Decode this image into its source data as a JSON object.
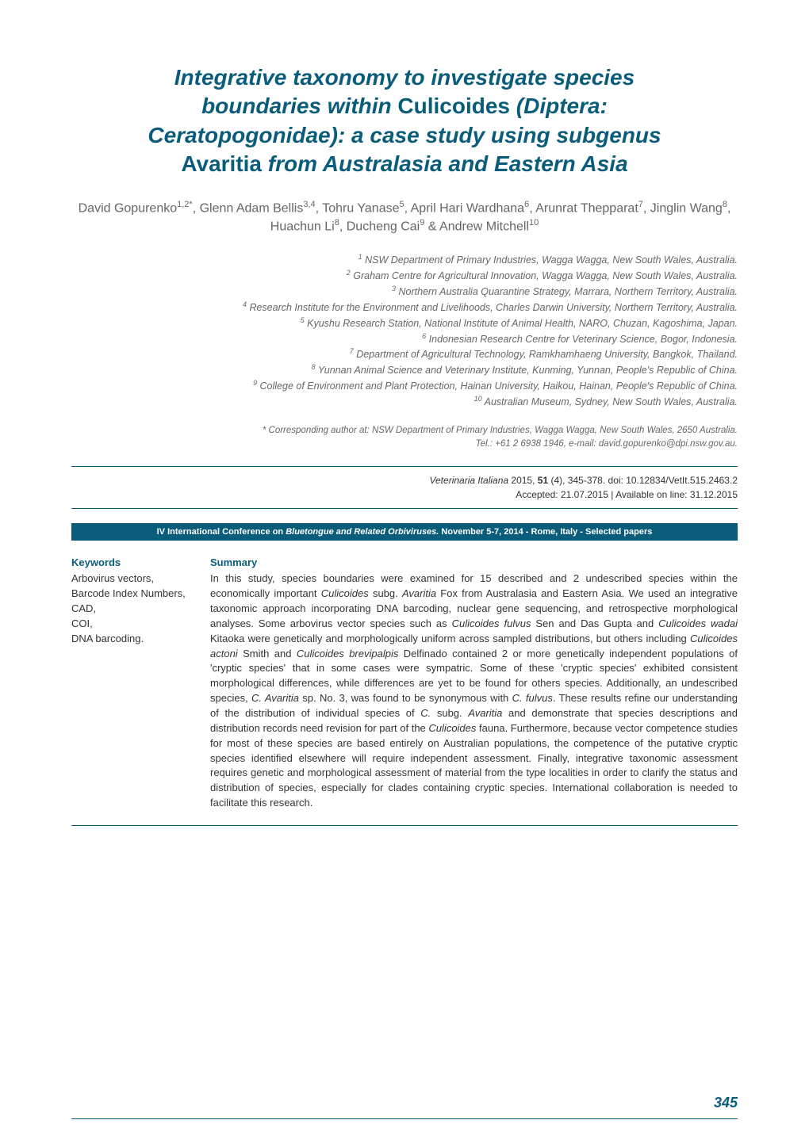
{
  "title": {
    "line1_italic": "Integrative taxonomy to investigate species",
    "line2_italic": "boundaries within",
    "line2_roman": " Culicoides ",
    "line2_italic_after": "(Diptera:",
    "line3_italic": "Ceratopogonidae): a case study using subgenus",
    "line4_roman": "Avaritia ",
    "line4_italic": "from Australasia and Eastern Asia"
  },
  "authors": {
    "text": "David Gopurenko1,2*, Glenn Adam Bellis3,4, Tohru Yanase5, April Hari Wardhana6, Arunrat Thepparat7, Jinglin Wang8, Huachun Li8, Ducheng Cai9 & Andrew Mitchell10",
    "parts": [
      {
        "name": "David Gopurenko",
        "sup": "1,2*"
      },
      {
        "name": ", Glenn Adam Bellis",
        "sup": "3,4"
      },
      {
        "name": ", Tohru Yanase",
        "sup": "5"
      },
      {
        "name": ", April Hari Wardhana",
        "sup": "6"
      },
      {
        "name": ", Arunrat Thepparat",
        "sup": "7"
      },
      {
        "name": ", Jinglin Wang",
        "sup": "8"
      },
      {
        "name": ", Huachun Li",
        "sup": "8"
      },
      {
        "name": ", Ducheng Cai",
        "sup": "9"
      },
      {
        "name": " & Andrew Mitchell",
        "sup": "10"
      }
    ]
  },
  "affiliations": [
    {
      "num": "1",
      "text": " NSW Department of Primary Industries, Wagga Wagga, New South Wales, Australia."
    },
    {
      "num": "2",
      "text": " Graham Centre for Agricultural Innovation, Wagga Wagga, New South Wales, Australia."
    },
    {
      "num": "3",
      "text": " Northern Australia Quarantine Strategy, Marrara, Northern Territory, Australia."
    },
    {
      "num": "4",
      "text": " Research Institute for the Environment and Livelihoods, Charles Darwin University, Northern Territory, Australia."
    },
    {
      "num": "5",
      "text": " Kyushu Research Station, National Institute of Animal Health, NARO, Chuzan, Kagoshima, Japan."
    },
    {
      "num": "6",
      "text": " Indonesian Research Centre for Veterinary Science, Bogor, Indonesia."
    },
    {
      "num": "7",
      "text": " Department of Agricultural Technology, Ramkhamhaeng University, Bangkok, Thailand."
    },
    {
      "num": "8",
      "text": " Yunnan Animal Science and Veterinary Institute, Kunming, Yunnan, People's Republic of China."
    },
    {
      "num": "9",
      "text": " College of Environment and Plant Protection, Hainan University, Haikou, Hainan, People's Republic of China."
    },
    {
      "num": "10",
      "text": " Australian Museum, Sydney, New South Wales, Australia."
    }
  ],
  "corresponding": {
    "line1": "* Corresponding author at: NSW Department of Primary Industries, Wagga Wagga, New South Wales, 2650 Australia.",
    "line2": "Tel.: +61 2 6938 1946, e-mail: david.gopurenko@dpi.nsw.gov.au."
  },
  "citation": {
    "journal": "Veterinaria Italiana",
    "year": " 2015, ",
    "volume": "51",
    "issue": " (4), 345-378. doi: 10.12834/VetIt.515.2463.2",
    "accepted": "Accepted: 21.07.2015  |  Available on line: 31.12.2015"
  },
  "conference": {
    "bold1": "IV International Conference on ",
    "italic": "Bluetongue and Related Orbiviruses.",
    "bold2": " November 5-7, 2014 - Rome, Italy - Selected papers"
  },
  "keywords": {
    "heading": "Keywords",
    "items": "Arbovirus vectors,\nBarcode Index Numbers,\nCAD,\nCOI,\nDNA barcoding."
  },
  "summary": {
    "heading": "Summary",
    "text": "In this study, species boundaries were examined for 15 described and 2 undescribed species within the economically important Culicoides subg. Avaritia Fox from Australasia and Eastern Asia. We used an integrative taxonomic approach incorporating DNA barcoding, nuclear gene sequencing, and retrospective morphological analyses. Some arbovirus vector species such as Culicoides fulvus Sen and Das Gupta and Culicoides wadai Kitaoka were genetically and morphologically uniform across sampled distributions, but others including Culicoides actoni Smith and Culicoides brevipalpis Delfinado contained 2 or more genetically independent populations of 'cryptic species' that in some cases were sympatric. Some of these 'cryptic species' exhibited consistent morphological differences, while differences are yet to be found for others species. Additionally, an undescribed species, C. Avaritia sp. No. 3, was found to be synonymous with C. fulvus. These results refine our understanding of the distribution of individual species of C. subg. Avaritia and demonstrate that species descriptions and distribution records need revision for part of the Culicoides fauna. Furthermore, because vector competence studies for most of these species are based entirely on Australian populations, the competence of the putative cryptic species identified elsewhere will require independent assessment. Finally, integrative taxonomic assessment requires genetic and morphological assessment of material from the type localities in order to clarify the status and distribution of species, especially for clades containing cryptic species. International collaboration is needed to facilitate this research."
  },
  "page_number": "345",
  "colors": {
    "primary": "#0a5d7a",
    "text_gray": "#666666",
    "text_dark": "#333333",
    "background": "#ffffff"
  }
}
